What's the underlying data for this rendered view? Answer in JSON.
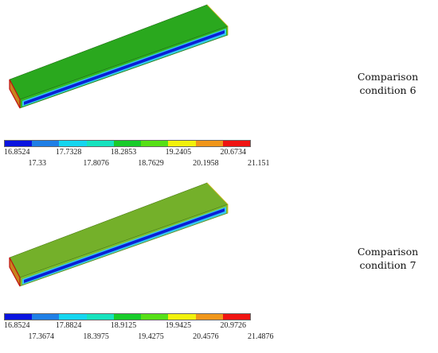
{
  "panels": [
    {
      "caption_line1": "Comparison",
      "caption_line2": "condition 6",
      "top_color": "#2aa81e",
      "front_color": "#32b824",
      "ticks": [
        "16.8524",
        "17.33",
        "17.7328",
        "17.8076",
        "18.2853",
        "18.7629",
        "19.2405",
        "20.1958",
        "20.6734",
        "21.151"
      ]
    },
    {
      "caption_line1": "Comparison",
      "caption_line2": "condition 7",
      "top_color": "#74b02a",
      "front_color": "#7cbf30",
      "ticks": [
        "16.8524",
        "17.3674",
        "17.8824",
        "18.3975",
        "18.9125",
        "19.4275",
        "19.9425",
        "20.4576",
        "20.9726",
        "21.4876"
      ]
    }
  ],
  "colorbar": {
    "colors": [
      "#0a14e0",
      "#1f7fe6",
      "#14d6f0",
      "#16e3be",
      "#18cc2a",
      "#56e016",
      "#f2f20c",
      "#f0961a",
      "#f01412"
    ]
  }
}
